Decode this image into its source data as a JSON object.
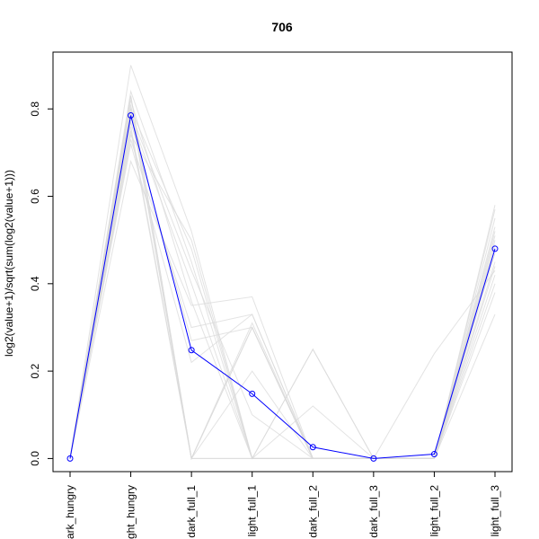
{
  "chart_data": {
    "type": "line",
    "title": "706",
    "xlabel": "",
    "ylabel": "log2(value+1)/sqrt(sum(log2(value+1)))",
    "categories": [
      "dark_hungry",
      "light_hungry",
      "dark_full_1",
      "light_full_1",
      "dark_full_2",
      "dark_full_3",
      "light_full_2",
      "light_full_3"
    ],
    "ylim": [
      -0.03,
      0.93
    ],
    "y_ticks": [
      0.0,
      0.2,
      0.4,
      0.6,
      0.8
    ],
    "y_tick_labels": [
      "0.0",
      "0.2",
      "0.4",
      "0.6",
      "0.8"
    ],
    "grid": false,
    "highlight_series": {
      "color": "#0000ff",
      "values": [
        0.0,
        0.785,
        0.248,
        0.148,
        0.026,
        0.0,
        0.01,
        0.48
      ]
    },
    "background_series_color": "#d9d9d9",
    "background_series": [
      [
        0.0,
        0.83,
        0.0,
        0.3,
        0.0,
        0.0,
        0.0,
        0.52
      ],
      [
        0.0,
        0.9,
        0.52,
        0.0,
        0.0,
        0.0,
        0.0,
        0.58
      ],
      [
        0.0,
        0.68,
        0.35,
        0.37,
        0.0,
        0.0,
        0.0,
        0.33
      ],
      [
        0.0,
        0.76,
        0.0,
        0.3,
        0.0,
        0.0,
        0.0,
        0.45
      ],
      [
        0.0,
        0.8,
        0.48,
        0.0,
        0.0,
        0.0,
        0.0,
        0.5
      ],
      [
        0.0,
        0.73,
        0.3,
        0.33,
        0.0,
        0.0,
        0.0,
        0.4
      ],
      [
        0.0,
        0.81,
        0.0,
        0.0,
        0.25,
        0.0,
        0.0,
        0.55
      ],
      [
        0.0,
        0.79,
        0.43,
        0.1,
        0.0,
        0.0,
        0.24,
        0.43
      ],
      [
        0.0,
        0.77,
        0.27,
        0.3,
        0.0,
        0.0,
        0.0,
        0.47
      ],
      [
        0.0,
        0.82,
        0.36,
        0.0,
        0.12,
        0.0,
        0.0,
        0.53
      ],
      [
        0.0,
        0.75,
        0.0,
        0.2,
        0.0,
        0.0,
        0.0,
        0.38
      ],
      [
        0.0,
        0.84,
        0.45,
        0.0,
        0.0,
        0.0,
        0.0,
        0.57
      ],
      [
        0.0,
        0.72,
        0.22,
        0.33,
        0.0,
        0.0,
        0.0,
        0.42
      ],
      [
        0.0,
        0.8,
        0.0,
        0.31,
        0.0,
        0.0,
        0.0,
        0.49
      ],
      [
        0.0,
        0.78,
        0.4,
        0.0,
        0.25,
        0.0,
        0.0,
        0.51
      ],
      [
        0.0,
        0.74,
        0.5,
        0.0,
        0.0,
        0.0,
        0.0,
        0.44
      ],
      [
        0.0,
        0.83,
        0.0,
        0.0,
        0.0,
        0.0,
        0.0,
        0.48
      ]
    ]
  }
}
